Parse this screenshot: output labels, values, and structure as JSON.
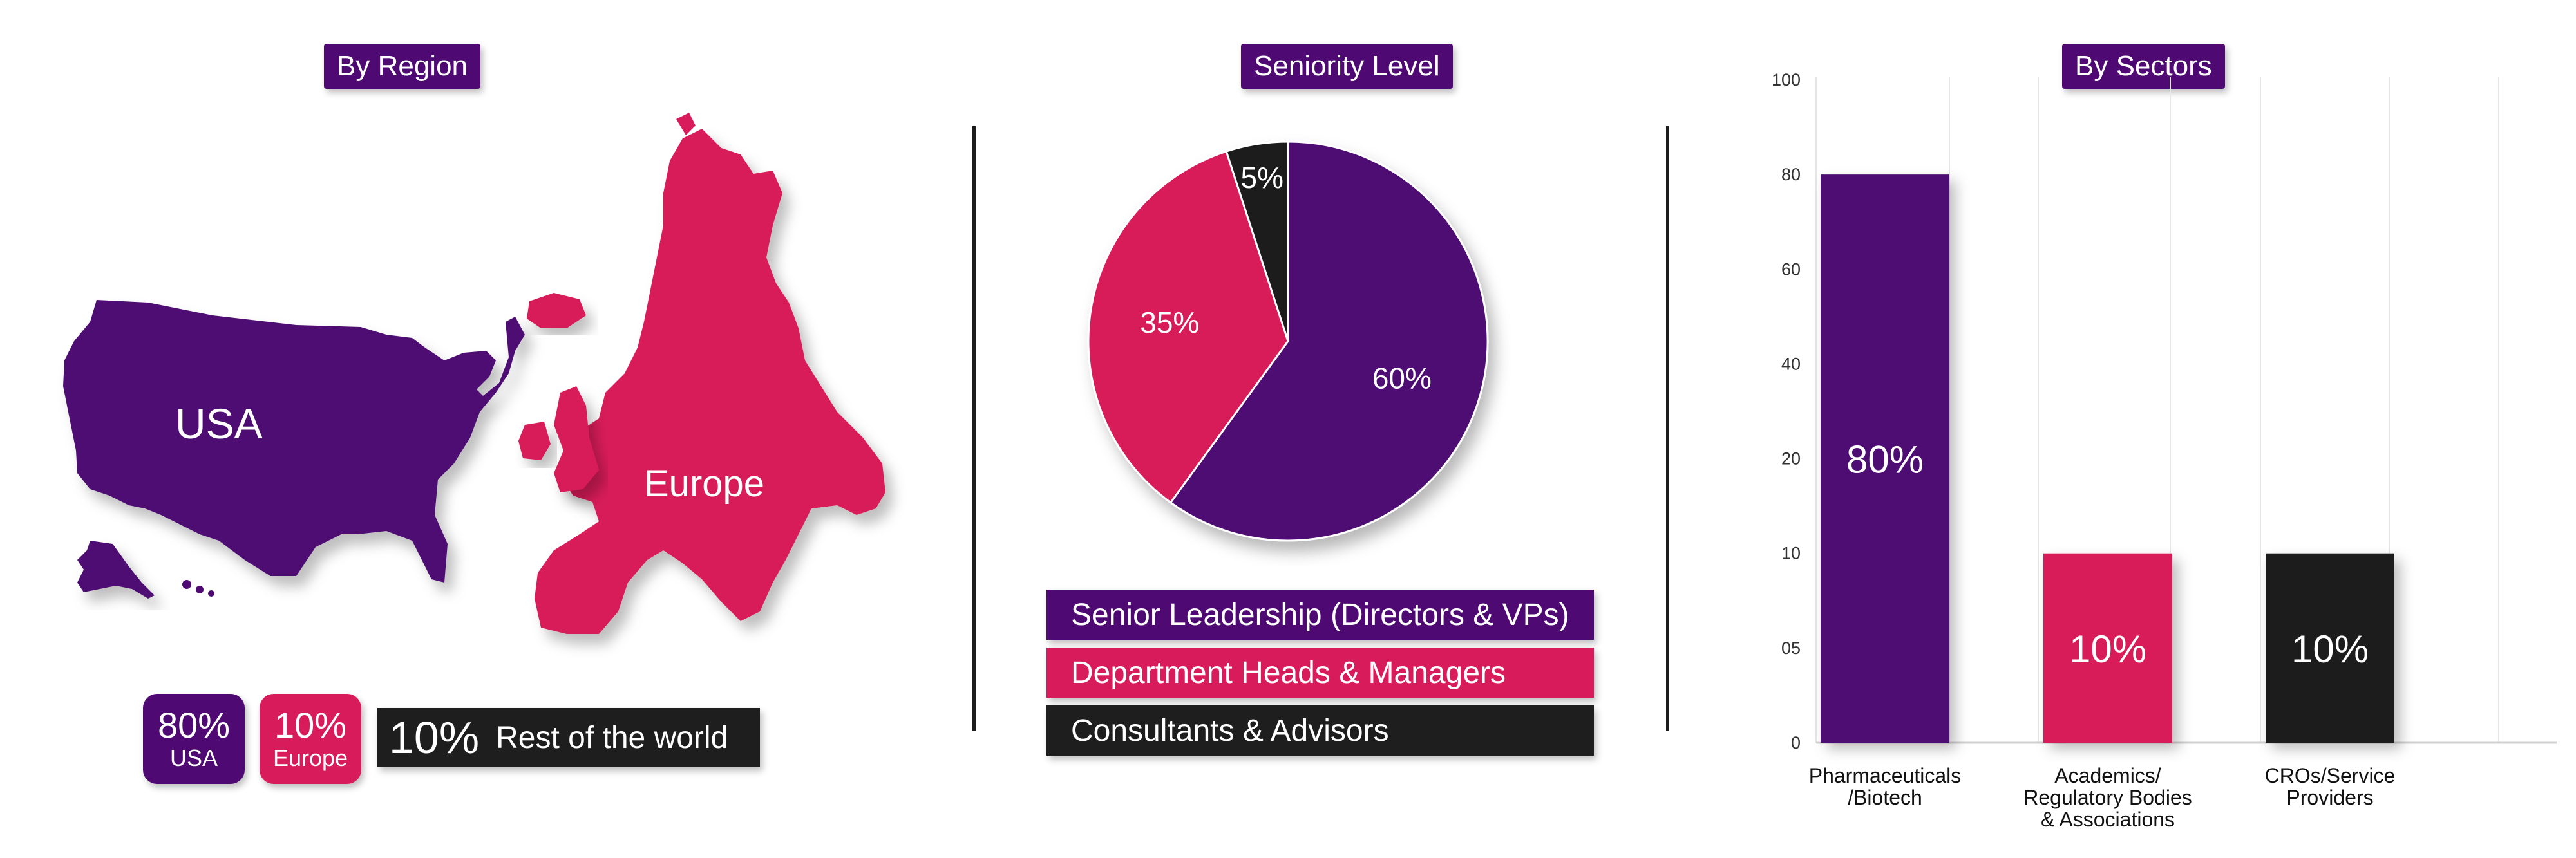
{
  "region": {
    "title": "By Region",
    "map_labels": {
      "usa": "USA",
      "europe": "Europe"
    },
    "stats": [
      {
        "value": "80%",
        "label": "USA",
        "color": "#4e0a72"
      },
      {
        "value": "10%",
        "label": "Europe",
        "color": "#d81b5a"
      }
    ],
    "rest": {
      "value": "10%",
      "label": "Rest of the world",
      "color": "#1e1e1e"
    }
  },
  "seniority": {
    "title": "Seniority Level",
    "chart_data": {
      "type": "pie",
      "slices": [
        {
          "label": "Senior Leadership (Directors & VPs)",
          "value": 60,
          "display": "60%",
          "color": "#4e0a72"
        },
        {
          "label": "Department Heads & Managers",
          "value": 35,
          "display": "35%",
          "color": "#d81b5a"
        },
        {
          "label": "Consultants & Advisors",
          "value": 5,
          "display": "5%",
          "color": "#1e1e1e"
        }
      ]
    }
  },
  "sectors": {
    "title": "By Sectors",
    "chart_data": {
      "type": "bar",
      "categories": [
        "Pharmaceuticals /Biotech",
        "Academics/ Regulatory Bodies & Associations",
        "CROs/Service Providers"
      ],
      "category_lines": [
        [
          "Pharmaceuticals",
          "/Biotech"
        ],
        [
          "Academics/",
          "Regulatory Bodies",
          "& Associations"
        ],
        [
          "CROs/Service",
          "Providers"
        ]
      ],
      "values": [
        80,
        10,
        10
      ],
      "display": [
        "80%",
        "10%",
        "10%"
      ],
      "colors": [
        "#4e0a72",
        "#d81b5a",
        "#1e1e1e"
      ],
      "y_ticks": [
        "100",
        "80",
        "60",
        "40",
        "20",
        "10",
        "05",
        "0"
      ],
      "y_tick_levels": [
        100,
        80,
        60,
        40,
        20,
        10,
        5,
        0
      ],
      "grid": true
    }
  }
}
